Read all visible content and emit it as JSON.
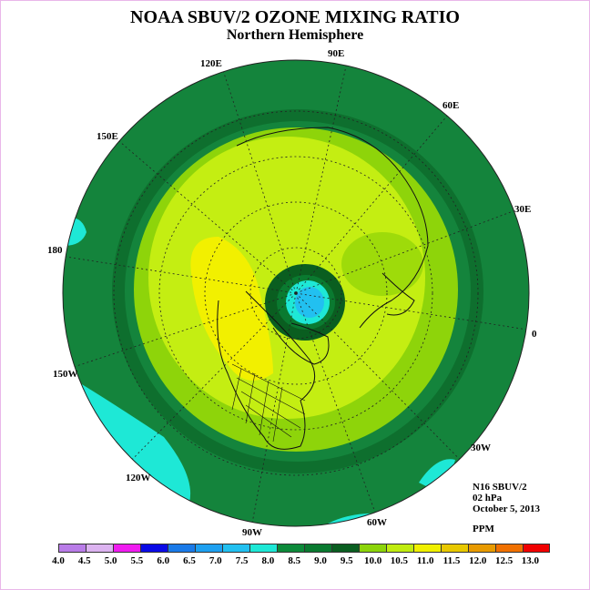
{
  "title": "NOAA SBUV/2 OZONE MIXING RATIO",
  "subtitle": "Northern Hemisphere",
  "longitude_labels": [
    "90E",
    "60E",
    "30E",
    "0",
    "30W",
    "60W",
    "90W",
    "120W",
    "150W",
    "180",
    "150E",
    "120E"
  ],
  "info": {
    "satellite": "N16 SBUV/2",
    "level": "02 hPa",
    "date": "October 5, 2013",
    "units": "PPM"
  },
  "colorbar": {
    "colors": [
      "#b97ce8",
      "#dcb3f0",
      "#f01cf0",
      "#0a0ae6",
      "#1a7ae8",
      "#1ea0f0",
      "#22c0f0",
      "#1ee8d6",
      "#0d8a3a",
      "#0a7a30",
      "#0a5e20",
      "#8cd40a",
      "#c0ec10",
      "#f0f000",
      "#e8c800",
      "#e89a00",
      "#f07000",
      "#f00000",
      "#8a5a28"
    ],
    "labels": [
      "4.0",
      "4.5",
      "5.0",
      "5.5",
      "6.0",
      "6.5",
      "7.0",
      "7.5",
      "8.0",
      "8.5",
      "9.0",
      "9.5",
      "10.0",
      "10.5",
      "11.0",
      "11.5",
      "12.0",
      "12.5",
      "13.0"
    ]
  }
}
